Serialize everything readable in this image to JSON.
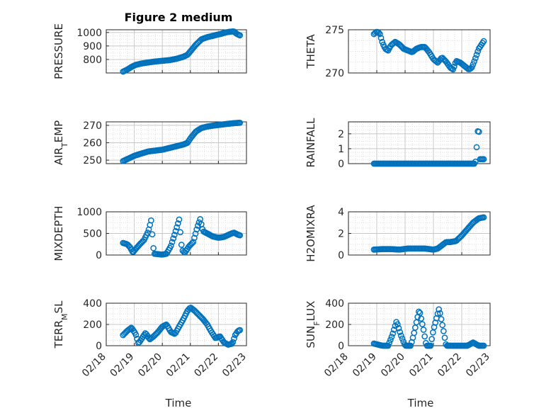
{
  "figure": {
    "title": "Figure 2 medium",
    "marker_color": "#0072bd",
    "xlabel": "Time",
    "date_ticks": [
      "02/18",
      "02/19",
      "02/20",
      "02/21",
      "02/22",
      "02/23"
    ]
  },
  "chart_data": [
    {
      "type": "scatter",
      "id": "pressure",
      "ylabel": "PRESSURE",
      "ylabel_sub": "",
      "ylim": [
        700,
        1020
      ],
      "yticks": [
        800,
        900,
        1000
      ],
      "xlim_days": [
        0,
        5
      ],
      "x_start": 0.6,
      "x_end": 4.8,
      "keypoints": [
        [
          0.6,
          710
        ],
        [
          0.75,
          725
        ],
        [
          0.9,
          745
        ],
        [
          1.05,
          760
        ],
        [
          1.25,
          770
        ],
        [
          1.5,
          778
        ],
        [
          1.75,
          785
        ],
        [
          2.0,
          790
        ],
        [
          2.25,
          795
        ],
        [
          2.5,
          805
        ],
        [
          2.75,
          820
        ],
        [
          2.9,
          835
        ],
        [
          3.0,
          860
        ],
        [
          3.2,
          910
        ],
        [
          3.4,
          950
        ],
        [
          3.6,
          965
        ],
        [
          3.8,
          975
        ],
        [
          3.95,
          983
        ],
        [
          4.1,
          990
        ],
        [
          4.25,
          1000
        ],
        [
          4.4,
          1005
        ],
        [
          4.55,
          1008
        ],
        [
          4.65,
          990
        ],
        [
          4.8,
          975
        ]
      ]
    },
    {
      "type": "scatter",
      "id": "theta",
      "ylabel": "THETA",
      "ylabel_sub": "",
      "ylim": [
        270,
        275
      ],
      "yticks": [
        270,
        275
      ],
      "xlim_days": [
        0,
        5
      ],
      "x_start": 0.9,
      "x_end": 4.8,
      "keypoints": [
        [
          0.9,
          274.5
        ],
        [
          1.0,
          274.8
        ],
        [
          1.1,
          274.6
        ],
        [
          1.2,
          273.5
        ],
        [
          1.3,
          272.8
        ],
        [
          1.4,
          272.6
        ],
        [
          1.5,
          273.2
        ],
        [
          1.65,
          273.6
        ],
        [
          1.8,
          273.3
        ],
        [
          1.95,
          272.8
        ],
        [
          2.1,
          272.6
        ],
        [
          2.25,
          272.4
        ],
        [
          2.4,
          272.8
        ],
        [
          2.55,
          273.0
        ],
        [
          2.7,
          273.0
        ],
        [
          2.85,
          272.4
        ],
        [
          3.0,
          271.6
        ],
        [
          3.15,
          271.2
        ],
        [
          3.3,
          271.8
        ],
        [
          3.45,
          271.3
        ],
        [
          3.6,
          270.6
        ],
        [
          3.7,
          270.4
        ],
        [
          3.8,
          271.4
        ],
        [
          3.95,
          271.2
        ],
        [
          4.1,
          270.8
        ],
        [
          4.25,
          270.4
        ],
        [
          4.35,
          270.6
        ],
        [
          4.45,
          271.4
        ],
        [
          4.6,
          272.8
        ],
        [
          4.8,
          273.8
        ]
      ]
    },
    {
      "type": "scatter",
      "id": "air-temp",
      "ylabel": "AIR",
      "ylabel_sub": "T",
      "ylabel_suffix": "EMP",
      "ylim": [
        248,
        272
      ],
      "yticks": [
        250,
        260,
        270
      ],
      "xlim_days": [
        0,
        5
      ],
      "x_start": 0.6,
      "x_end": 4.8,
      "keypoints": [
        [
          0.6,
          249.5
        ],
        [
          0.8,
          251
        ],
        [
          1.0,
          252.5
        ],
        [
          1.25,
          253.8
        ],
        [
          1.5,
          255
        ],
        [
          1.75,
          255.5
        ],
        [
          2.0,
          256
        ],
        [
          2.25,
          257
        ],
        [
          2.5,
          258
        ],
        [
          2.75,
          259
        ],
        [
          2.9,
          260
        ],
        [
          3.0,
          262.5
        ],
        [
          3.2,
          266.5
        ],
        [
          3.4,
          268.5
        ],
        [
          3.6,
          269.3
        ],
        [
          3.8,
          269.8
        ],
        [
          4.0,
          270.2
        ],
        [
          4.2,
          270.6
        ],
        [
          4.4,
          271
        ],
        [
          4.6,
          271.3
        ],
        [
          4.8,
          271.5
        ]
      ]
    },
    {
      "type": "scatter",
      "id": "rainfall",
      "ylabel": "RAINFALL",
      "ylabel_sub": "",
      "ylim": [
        0,
        2.8
      ],
      "yticks": [
        0,
        1,
        2
      ],
      "xlim_days": [
        0,
        5
      ],
      "x_start": 0.9,
      "x_end": 4.8,
      "keypoints": [
        [
          0.9,
          0
        ],
        [
          4.3,
          0
        ],
        [
          4.45,
          0
        ],
        [
          4.5,
          0.2
        ],
        [
          4.55,
          2.0
        ],
        [
          4.6,
          2.5
        ],
        [
          4.65,
          0.3
        ],
        [
          4.8,
          0.3
        ]
      ]
    },
    {
      "type": "scatter",
      "id": "mixdepth",
      "ylabel": "MIXDEPTH",
      "ylabel_sub": "",
      "ylim": [
        0,
        1000
      ],
      "yticks": [
        0,
        500,
        1000
      ],
      "xlim_days": [
        0,
        5
      ],
      "x_start": 0.6,
      "x_end": 4.8,
      "keypoints": [
        [
          0.6,
          280
        ],
        [
          0.75,
          250
        ],
        [
          0.85,
          180
        ],
        [
          0.95,
          60
        ],
        [
          1.05,
          140
        ],
        [
          1.2,
          250
        ],
        [
          1.35,
          350
        ],
        [
          1.5,
          550
        ],
        [
          1.6,
          800
        ],
        [
          1.7,
          30
        ],
        [
          1.85,
          20
        ],
        [
          2.0,
          10
        ],
        [
          2.15,
          30
        ],
        [
          2.3,
          200
        ],
        [
          2.45,
          500
        ],
        [
          2.6,
          820
        ],
        [
          2.7,
          120
        ],
        [
          2.8,
          50
        ],
        [
          2.95,
          200
        ],
        [
          3.1,
          300
        ],
        [
          3.25,
          650
        ],
        [
          3.35,
          830
        ],
        [
          3.45,
          550
        ],
        [
          3.6,
          500
        ],
        [
          3.8,
          430
        ],
        [
          4.0,
          400
        ],
        [
          4.2,
          420
        ],
        [
          4.4,
          480
        ],
        [
          4.55,
          520
        ],
        [
          4.7,
          470
        ],
        [
          4.8,
          450
        ]
      ]
    },
    {
      "type": "scatter",
      "id": "h2omixra",
      "ylabel": "H2OMIXRA",
      "ylabel_sub": "",
      "ylim": [
        0,
        4
      ],
      "yticks": [
        0,
        2,
        4
      ],
      "xlim_days": [
        0,
        5
      ],
      "x_start": 0.9,
      "x_end": 4.8,
      "keypoints": [
        [
          0.9,
          0.5
        ],
        [
          1.2,
          0.55
        ],
        [
          1.5,
          0.55
        ],
        [
          1.8,
          0.5
        ],
        [
          2.1,
          0.6
        ],
        [
          2.4,
          0.6
        ],
        [
          2.7,
          0.6
        ],
        [
          3.0,
          0.5
        ],
        [
          3.15,
          0.6
        ],
        [
          3.3,
          0.9
        ],
        [
          3.45,
          1.2
        ],
        [
          3.6,
          1.2
        ],
        [
          3.8,
          1.3
        ],
        [
          4.0,
          1.8
        ],
        [
          4.2,
          2.4
        ],
        [
          4.4,
          3.0
        ],
        [
          4.6,
          3.4
        ],
        [
          4.8,
          3.5
        ]
      ]
    },
    {
      "type": "scatter",
      "id": "terr-msl",
      "ylabel": "TERR",
      "ylabel_sub": "M",
      "ylabel_suffix": "SL",
      "ylim": [
        0,
        400
      ],
      "yticks": [
        0,
        200,
        400
      ],
      "xlim_days": [
        0,
        5
      ],
      "x_start": 0.6,
      "x_end": 4.8,
      "keypoints": [
        [
          0.6,
          100
        ],
        [
          0.75,
          140
        ],
        [
          0.9,
          170
        ],
        [
          1.05,
          110
        ],
        [
          1.15,
          20
        ],
        [
          1.25,
          60
        ],
        [
          1.4,
          120
        ],
        [
          1.55,
          60
        ],
        [
          1.7,
          90
        ],
        [
          1.85,
          130
        ],
        [
          2.0,
          180
        ],
        [
          2.15,
          200
        ],
        [
          2.3,
          130
        ],
        [
          2.45,
          110
        ],
        [
          2.6,
          180
        ],
        [
          2.75,
          250
        ],
        [
          2.9,
          330
        ],
        [
          3.0,
          360
        ],
        [
          3.15,
          330
        ],
        [
          3.3,
          290
        ],
        [
          3.45,
          250
        ],
        [
          3.6,
          200
        ],
        [
          3.75,
          130
        ],
        [
          3.9,
          70
        ],
        [
          4.05,
          90
        ],
        [
          4.2,
          30
        ],
        [
          4.35,
          10
        ],
        [
          4.5,
          20
        ],
        [
          4.6,
          100
        ],
        [
          4.7,
          140
        ],
        [
          4.8,
          150
        ]
      ]
    },
    {
      "type": "scatter",
      "id": "sun-flux",
      "ylabel": "SUN",
      "ylabel_sub": "F",
      "ylabel_suffix": "LUX",
      "ylim": [
        0,
        400
      ],
      "yticks": [
        0,
        200,
        400
      ],
      "xlim_days": [
        0,
        5
      ],
      "x_start": 0.9,
      "x_end": 4.8,
      "keypoints": [
        [
          0.9,
          20
        ],
        [
          1.2,
          0
        ],
        [
          1.4,
          0
        ],
        [
          1.55,
          100
        ],
        [
          1.7,
          230
        ],
        [
          1.85,
          100
        ],
        [
          2.0,
          0
        ],
        [
          2.2,
          0
        ],
        [
          2.3,
          100
        ],
        [
          2.5,
          340
        ],
        [
          2.65,
          150
        ],
        [
          2.75,
          0
        ],
        [
          2.9,
          0
        ],
        [
          3.0,
          150
        ],
        [
          3.2,
          350
        ],
        [
          3.35,
          150
        ],
        [
          3.45,
          0
        ],
        [
          3.65,
          0
        ],
        [
          3.8,
          0
        ],
        [
          4.0,
          0
        ],
        [
          4.2,
          0
        ],
        [
          4.4,
          30
        ],
        [
          4.6,
          0
        ],
        [
          4.8,
          0
        ]
      ]
    }
  ]
}
